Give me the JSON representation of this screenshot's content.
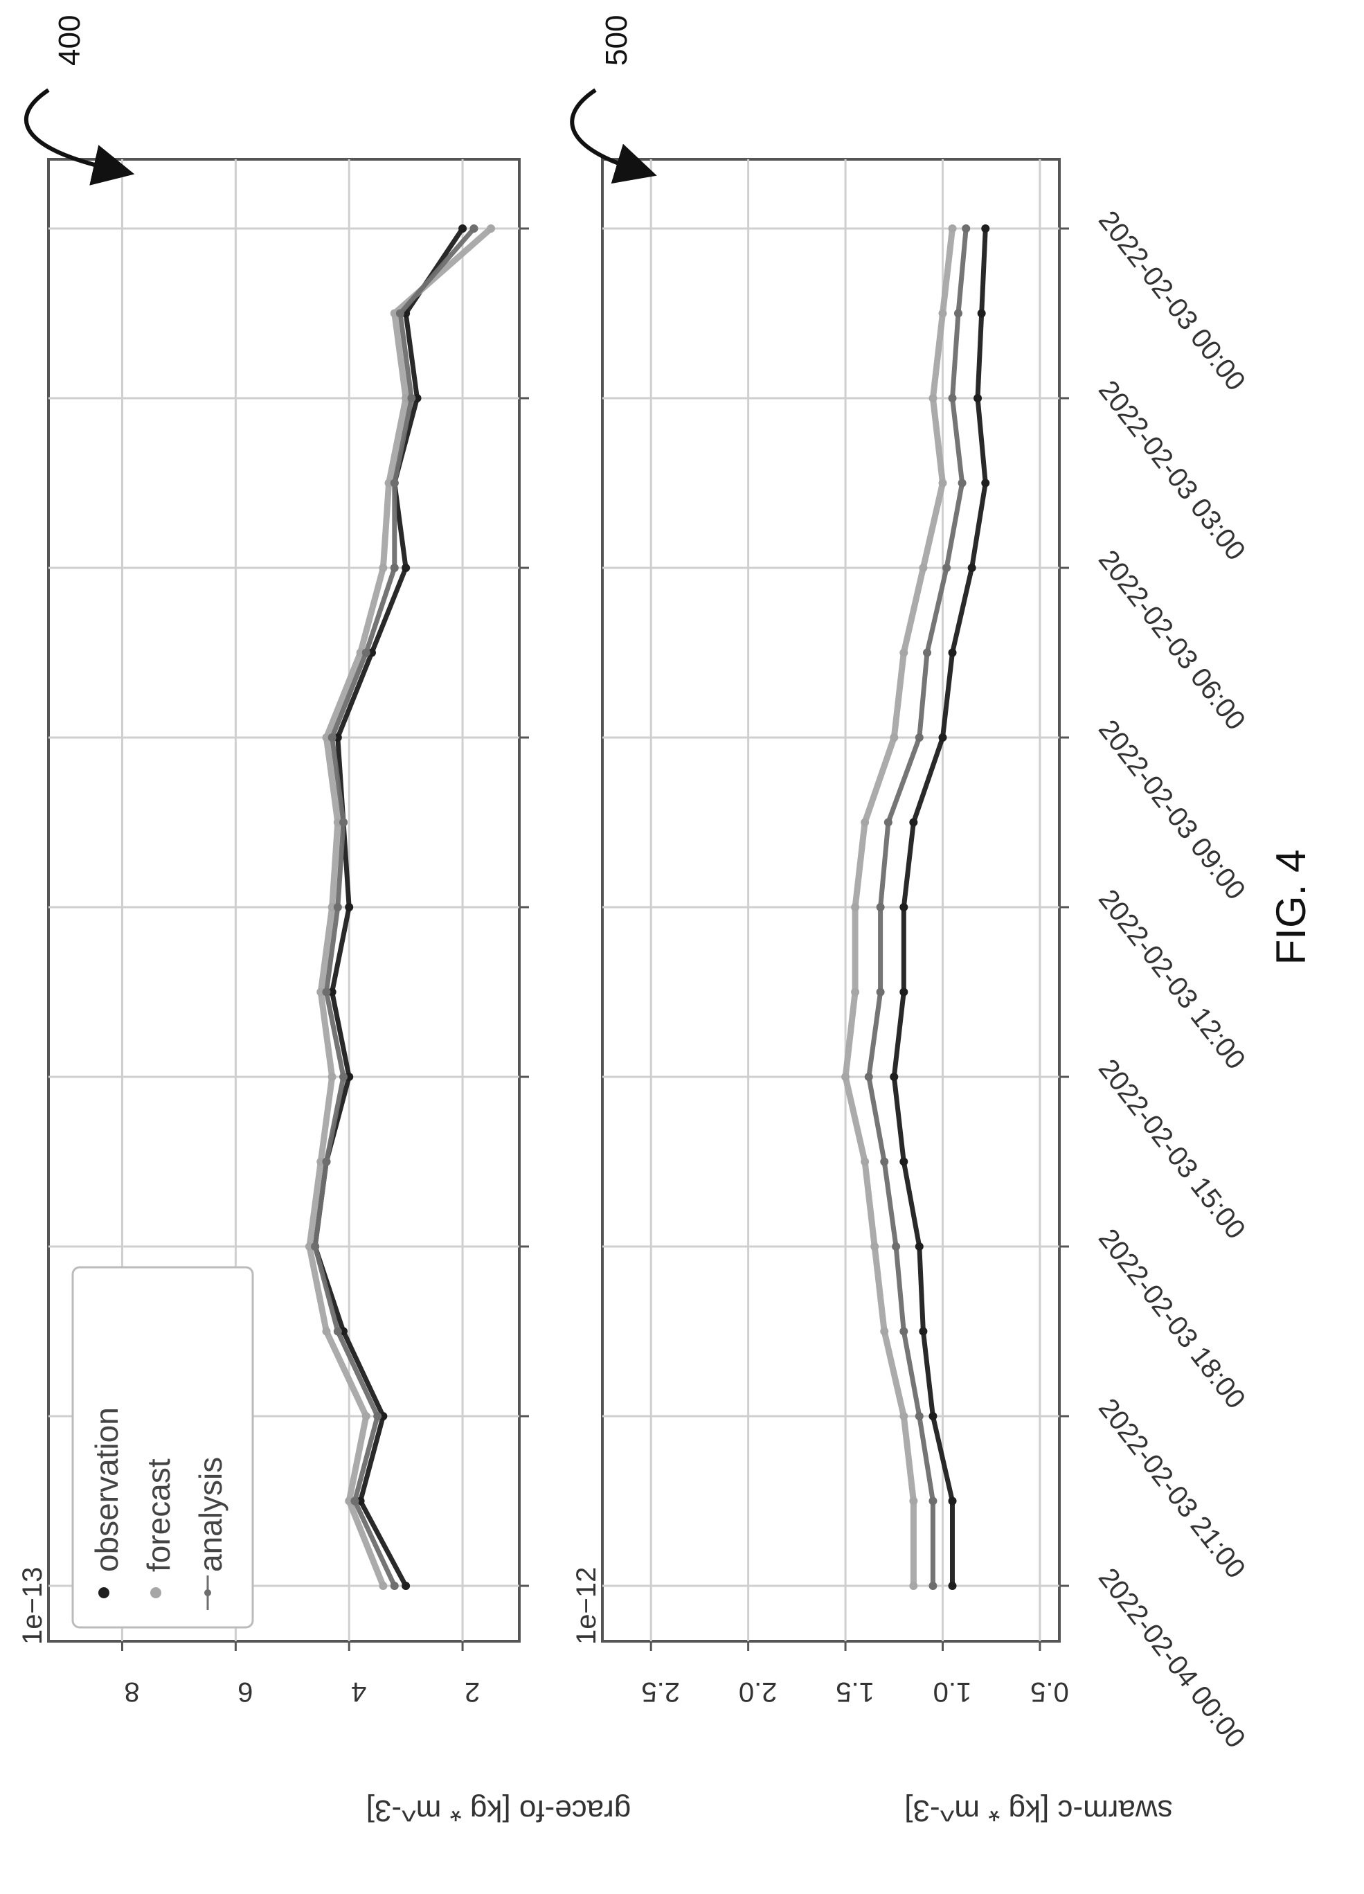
{
  "figure_label": "FIG. 4",
  "colors": {
    "observation": "#1e1e1e",
    "forecast": "#a6a6a6",
    "analysis": "#6e6e6e",
    "grid": "#cfcfcf",
    "axis": "#555555"
  },
  "chart_data": [
    {
      "type": "line",
      "ref": "400",
      "ylabel": "grace-fo [kg * m^-3]",
      "multiplier": "1e−13",
      "yticks": [
        2,
        4,
        6,
        8
      ],
      "ytick_labels": [
        "2",
        "4",
        "6",
        "8"
      ],
      "ylim": [
        1.0,
        9.3
      ],
      "xlim": [
        "2022-02-03 00:00",
        "2022-02-04 00:00"
      ],
      "xticks": [
        "2022-02-03 00:00",
        "2022-02-03 03:00",
        "2022-02-03 06:00",
        "2022-02-03 09:00",
        "2022-02-03 12:00",
        "2022-02-03 15:00",
        "2022-02-03 18:00",
        "2022-02-03 21:00",
        "2022-02-04 00:00"
      ],
      "grid": true,
      "legend": {
        "placement": "top-left",
        "entries": [
          "observation",
          "forecast",
          "analysis"
        ]
      },
      "series": [
        {
          "name": "observation",
          "x": [
            "2022-02-03 00:00",
            "2022-02-03 01:30",
            "2022-02-03 03:00",
            "2022-02-03 04:30",
            "2022-02-03 06:00",
            "2022-02-03 07:30",
            "2022-02-03 09:00",
            "2022-02-03 10:30",
            "2022-02-03 12:00",
            "2022-02-03 13:30",
            "2022-02-03 15:00",
            "2022-02-03 16:30",
            "2022-02-03 18:00",
            "2022-02-03 19:30",
            "2022-02-03 21:00",
            "2022-02-03 22:30",
            "2022-02-04 00:00"
          ],
          "y": [
            2.0,
            3.0,
            2.8,
            3.2,
            3.0,
            3.6,
            4.2,
            4.1,
            4.0,
            4.3,
            4.0,
            4.4,
            4.6,
            4.1,
            3.4,
            3.8,
            3.0
          ]
        },
        {
          "name": "forecast",
          "x": [
            "2022-02-03 00:00",
            "2022-02-03 01:30",
            "2022-02-03 03:00",
            "2022-02-03 04:30",
            "2022-02-03 06:00",
            "2022-02-03 07:30",
            "2022-02-03 09:00",
            "2022-02-03 10:30",
            "2022-02-03 12:00",
            "2022-02-03 13:30",
            "2022-02-03 15:00",
            "2022-02-03 16:30",
            "2022-02-03 18:00",
            "2022-02-03 19:30",
            "2022-02-03 21:00",
            "2022-02-03 22:30",
            "2022-02-04 00:00"
          ],
          "y": [
            1.5,
            3.2,
            3.0,
            3.3,
            3.4,
            3.8,
            4.4,
            4.2,
            4.3,
            4.5,
            4.3,
            4.5,
            4.7,
            4.4,
            3.7,
            4.0,
            3.4
          ]
        },
        {
          "name": "analysis",
          "x": [
            "2022-02-03 00:00",
            "2022-02-03 01:30",
            "2022-02-03 03:00",
            "2022-02-03 04:30",
            "2022-02-03 06:00",
            "2022-02-03 07:30",
            "2022-02-03 09:00",
            "2022-02-03 10:30",
            "2022-02-03 12:00",
            "2022-02-03 13:30",
            "2022-02-03 15:00",
            "2022-02-03 16:30",
            "2022-02-03 18:00",
            "2022-02-03 19:30",
            "2022-02-03 21:00",
            "2022-02-03 22:30",
            "2022-02-04 00:00"
          ],
          "y": [
            1.8,
            3.1,
            2.9,
            3.2,
            3.2,
            3.7,
            4.3,
            4.1,
            4.2,
            4.4,
            4.1,
            4.4,
            4.6,
            4.2,
            3.5,
            3.9,
            3.2
          ]
        }
      ]
    },
    {
      "type": "line",
      "ref": "500",
      "ylabel": "swarm-c [kg * m^-3]",
      "multiplier": "1e−12",
      "yticks": [
        0.5,
        1.0,
        1.5,
        2.0,
        2.5
      ],
      "ytick_labels": [
        "0.5",
        "1.0",
        "1.5",
        "2.0",
        "2.5"
      ],
      "ylim": [
        0.4,
        2.75
      ],
      "xlim": [
        "2022-02-03 00:00",
        "2022-02-04 00:00"
      ],
      "xticks": [
        "2022-02-03 00:00",
        "2022-02-03 03:00",
        "2022-02-03 06:00",
        "2022-02-03 09:00",
        "2022-02-03 12:00",
        "2022-02-03 15:00",
        "2022-02-03 18:00",
        "2022-02-03 21:00",
        "2022-02-04 00:00"
      ],
      "xtick_labels": [
        "2022-02-03 00:00",
        "2022-02-03 03:00",
        "2022-02-03 06:00",
        "2022-02-03 09:00",
        "2022-02-03 12:00",
        "2022-02-03 15:00",
        "2022-02-03 18:00",
        "2022-02-03 21:00",
        "2022-02-04 00:00"
      ],
      "grid": true,
      "series": [
        {
          "name": "observation",
          "x": [
            "2022-02-03 00:00",
            "2022-02-03 01:30",
            "2022-02-03 03:00",
            "2022-02-03 04:30",
            "2022-02-03 06:00",
            "2022-02-03 07:30",
            "2022-02-03 09:00",
            "2022-02-03 10:30",
            "2022-02-03 12:00",
            "2022-02-03 13:30",
            "2022-02-03 15:00",
            "2022-02-03 16:30",
            "2022-02-03 18:00",
            "2022-02-03 19:30",
            "2022-02-03 21:00",
            "2022-02-03 22:30",
            "2022-02-04 00:00"
          ],
          "y": [
            0.78,
            0.8,
            0.82,
            0.78,
            0.85,
            0.95,
            1.0,
            1.15,
            1.2,
            1.2,
            1.25,
            1.2,
            1.12,
            1.1,
            1.05,
            0.95,
            0.95
          ]
        },
        {
          "name": "forecast",
          "x": [
            "2022-02-03 00:00",
            "2022-02-03 01:30",
            "2022-02-03 03:00",
            "2022-02-03 04:30",
            "2022-02-03 06:00",
            "2022-02-03 07:30",
            "2022-02-03 09:00",
            "2022-02-03 10:30",
            "2022-02-03 12:00",
            "2022-02-03 13:30",
            "2022-02-03 15:00",
            "2022-02-03 16:30",
            "2022-02-03 18:00",
            "2022-02-03 19:30",
            "2022-02-03 21:00",
            "2022-02-03 22:30",
            "2022-02-04 00:00"
          ],
          "y": [
            0.95,
            1.0,
            1.05,
            1.0,
            1.1,
            1.2,
            1.25,
            1.4,
            1.45,
            1.45,
            1.5,
            1.4,
            1.35,
            1.3,
            1.2,
            1.15,
            1.15
          ]
        },
        {
          "name": "analysis",
          "x": [
            "2022-02-03 00:00",
            "2022-02-03 01:30",
            "2022-02-03 03:00",
            "2022-02-03 04:30",
            "2022-02-03 06:00",
            "2022-02-03 07:30",
            "2022-02-03 09:00",
            "2022-02-03 10:30",
            "2022-02-03 12:00",
            "2022-02-03 13:30",
            "2022-02-03 15:00",
            "2022-02-03 16:30",
            "2022-02-03 18:00",
            "2022-02-03 19:30",
            "2022-02-03 21:00",
            "2022-02-03 22:30",
            "2022-02-04 00:00"
          ],
          "y": [
            0.88,
            0.92,
            0.95,
            0.9,
            0.98,
            1.08,
            1.12,
            1.28,
            1.32,
            1.32,
            1.38,
            1.3,
            1.24,
            1.2,
            1.12,
            1.05,
            1.05
          ]
        }
      ]
    }
  ]
}
